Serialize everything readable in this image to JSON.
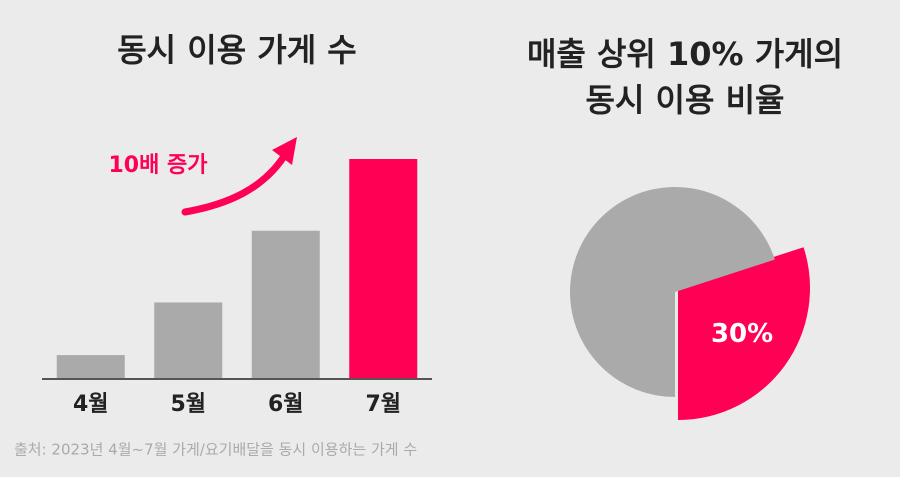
{
  "chart_data": [
    {
      "type": "bar",
      "title": [
        "동시 이용 가게 수"
      ],
      "annotation": "10배 증가",
      "categories": [
        "4월",
        "5월",
        "6월",
        "7월"
      ],
      "values": [
        1,
        3.2,
        6.2,
        9.2
      ],
      "colors": [
        "#aaaaaa",
        "#aaaaaa",
        "#aaaaaa",
        "#ff0055"
      ],
      "ylim": [
        0,
        9.2
      ]
    },
    {
      "type": "pie",
      "title": [
        "매출 상위 10% 가게의",
        "동시 이용 비율"
      ],
      "values": [
        30,
        70
      ],
      "value_labels": [
        "30%",
        null
      ],
      "colors": [
        "#ff0055",
        "#aaaaaa"
      ]
    }
  ],
  "footnote": "출처: 2023년 4월~7월 가게/요기배달을 동시 이용하는 가게 수"
}
